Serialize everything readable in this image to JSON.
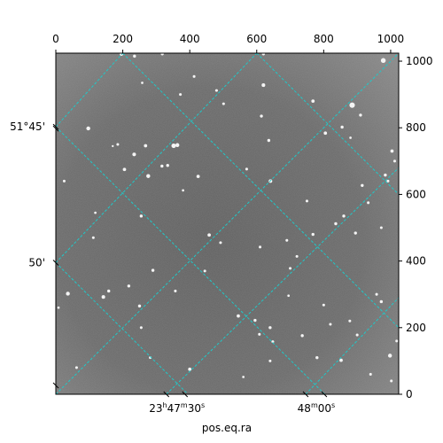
{
  "chart_data": {
    "type": "image",
    "title": "",
    "image_colormap": "gray",
    "top_axis": {
      "range": [
        0,
        1024
      ],
      "ticks": [
        0,
        200,
        400,
        600,
        800,
        1000
      ]
    },
    "right_axis": {
      "range": [
        0,
        1024
      ],
      "ticks": [
        0,
        200,
        400,
        600,
        800,
        1000
      ]
    },
    "bottom_axis": {
      "label": "pos.eq.ra",
      "ticks": [
        {
          "pixel": [
            330,
            0
          ],
          "label": "23",
          "sup_h": "h",
          "min": "47",
          "sup_m": "m",
          "sec": "30",
          "sup_s": "s"
        },
        {
          "pixel": [
            746,
            0
          ],
          "label": "48",
          "sup_m": "m",
          "sec": "00",
          "sup_s": "s"
        }
      ]
    },
    "left_axis": {
      "ticks": [
        {
          "pixel": [
            0,
            803
          ],
          "label": "51°45'"
        },
        {
          "pixel": [
            0,
            395
          ],
          "label": "50'"
        }
      ]
    },
    "grid": {
      "color": "#20c8c8",
      "style": "dashed",
      "family_a": [
        [
          [
            0,
            803
          ],
          [
            200,
            1024
          ]
        ],
        [
          [
            0,
            395
          ],
          [
            600,
            1024
          ]
        ],
        [
          [
            0,
            0
          ],
          [
            1024,
            1024
          ]
        ],
        [
          [
            330,
            0
          ],
          [
            1024,
            680
          ]
        ],
        [
          [
            746,
            0
          ],
          [
            1024,
            290
          ]
        ]
      ],
      "family_b": [
        [
          [
            0,
            395
          ],
          [
            395,
            0
          ]
        ],
        [
          [
            0,
            803
          ],
          [
            803,
            0
          ]
        ],
        [
          [
            200,
            1024
          ],
          [
            1024,
            200
          ]
        ],
        [
          [
            600,
            1024
          ],
          [
            1024,
            600
          ]
        ]
      ]
    },
    "stars": [
      [
        97,
        798,
        2.6
      ],
      [
        196,
        1021,
        2.2
      ],
      [
        235,
        1015,
        2.0
      ],
      [
        318,
        1022,
        2.0
      ],
      [
        620,
        1022,
        2.0
      ],
      [
        978,
        1002,
        3.2
      ],
      [
        620,
        928,
        2.4
      ],
      [
        768,
        880,
        2.2
      ],
      [
        885,
        868,
        3.6
      ],
      [
        910,
        838,
        2.0
      ],
      [
        805,
        784,
        2.2
      ],
      [
        855,
        802,
        2.0
      ],
      [
        880,
        770,
        1.6
      ],
      [
        1004,
        730,
        2.2
      ],
      [
        1012,
        700,
        1.8
      ],
      [
        170,
        745,
        1.4
      ],
      [
        185,
        750,
        1.8
      ],
      [
        205,
        675,
        2.2
      ],
      [
        234,
        720,
        2.4
      ],
      [
        268,
        746,
        2.2
      ],
      [
        276,
        655,
        2.6
      ],
      [
        317,
        685,
        2.0
      ],
      [
        334,
        687,
        2.0
      ],
      [
        352,
        746,
        3.0
      ],
      [
        363,
        748,
        2.6
      ],
      [
        425,
        654,
        2.2
      ],
      [
        636,
        762,
        2.0
      ],
      [
        641,
        640,
        2.4
      ],
      [
        570,
        676,
        1.8
      ],
      [
        614,
        835,
        2.0
      ],
      [
        501,
        872,
        1.8
      ],
      [
        480,
        912,
        1.8
      ],
      [
        413,
        954,
        1.8
      ],
      [
        372,
        900,
        1.8
      ],
      [
        258,
        935,
        1.6
      ],
      [
        750,
        580,
        1.8
      ],
      [
        768,
        480,
        2.0
      ],
      [
        836,
        512,
        2.0
      ],
      [
        860,
        535,
        2.0
      ],
      [
        895,
        484,
        2.0
      ],
      [
        933,
        575,
        1.8
      ],
      [
        915,
        627,
        2.0
      ],
      [
        992,
        640,
        1.8
      ],
      [
        984,
        658,
        2.0
      ],
      [
        972,
        500,
        1.8
      ],
      [
        25,
        640,
        1.8
      ],
      [
        112,
        470,
        1.8
      ],
      [
        255,
        535,
        2.0
      ],
      [
        290,
        372,
        2.0
      ],
      [
        357,
        310,
        1.8
      ],
      [
        458,
        478,
        2.2
      ],
      [
        610,
        442,
        1.8
      ],
      [
        690,
        462,
        1.8
      ],
      [
        700,
        378,
        1.8
      ],
      [
        720,
        414,
        1.8
      ],
      [
        36,
        302,
        2.6
      ],
      [
        142,
        292,
        2.4
      ],
      [
        158,
        310,
        2.0
      ],
      [
        218,
        325,
        2.0
      ],
      [
        250,
        265,
        2.0
      ],
      [
        255,
        200,
        1.8
      ],
      [
        282,
        110,
        1.8
      ],
      [
        400,
        75,
        2.2
      ],
      [
        445,
        370,
        1.8
      ],
      [
        492,
        455,
        1.8
      ],
      [
        545,
        235,
        2.2
      ],
      [
        595,
        222,
        2.0
      ],
      [
        608,
        180,
        1.8
      ],
      [
        640,
        200,
        2.0
      ],
      [
        648,
        158,
        1.8
      ],
      [
        640,
        100,
        1.8
      ],
      [
        736,
        176,
        2.0
      ],
      [
        780,
        110,
        2.0
      ],
      [
        800,
        268,
        1.8
      ],
      [
        820,
        210,
        1.8
      ],
      [
        852,
        102,
        2.2
      ],
      [
        878,
        220,
        1.8
      ],
      [
        900,
        178,
        1.8
      ],
      [
        940,
        60,
        1.8
      ],
      [
        958,
        300,
        1.8
      ],
      [
        972,
        278,
        2.0
      ],
      [
        998,
        116,
        2.6
      ],
      [
        1002,
        40,
        1.8
      ],
      [
        1018,
        160,
        1.8
      ],
      [
        62,
        80,
        1.8
      ],
      [
        8,
        260,
        1.6
      ],
      [
        560,
        52,
        1.6
      ],
      [
        695,
        296,
        1.6
      ],
      [
        118,
        545,
        1.6
      ],
      [
        380,
        612,
        1.6
      ]
    ]
  }
}
